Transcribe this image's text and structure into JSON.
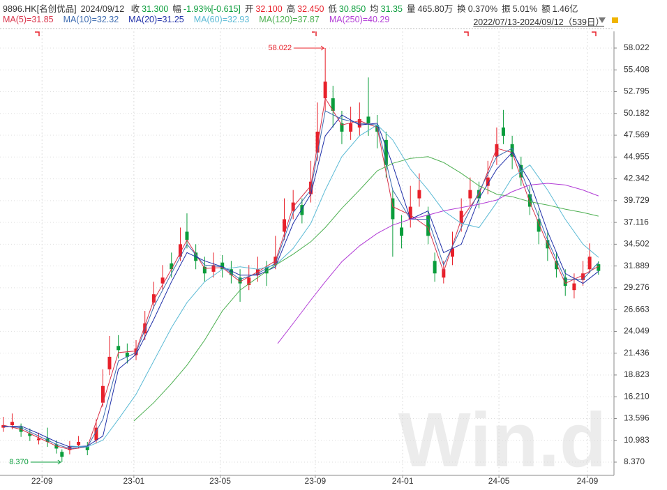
{
  "header": {
    "symbol": "9896.HK[名创优品]",
    "date": "2024/09/12",
    "items": [
      {
        "label": "收",
        "value": "31.300",
        "color": "#0a9d3b"
      },
      {
        "label": "幅",
        "value": "-1.93%[-0.615]",
        "color": "#0a9d3b"
      },
      {
        "label": "开",
        "value": "32.100",
        "color": "#e8202a"
      },
      {
        "label": "高",
        "value": "32.450",
        "color": "#e8202a"
      },
      {
        "label": "低",
        "value": "30.850",
        "color": "#0a9d3b"
      },
      {
        "label": "均",
        "value": "31.35",
        "color": "#0a9d3b"
      },
      {
        "label": "量",
        "value": "465.80万",
        "color": "#333333"
      },
      {
        "label": "换",
        "value": "0.370%",
        "color": "#333333"
      },
      {
        "label": "振",
        "value": "5.01%",
        "color": "#333333"
      },
      {
        "label": "额",
        "value": "1.46亿",
        "color": "#333333"
      }
    ]
  },
  "chart_data": {
    "type": "candlestick",
    "period": "2022/07/13-2024/09/12（539日）",
    "watermark": "Win.d",
    "up_color": "#e8202a",
    "down_color": "#0a9d3b",
    "grid": true,
    "x": [
      0,
      8,
      16,
      24,
      32,
      40,
      48,
      53,
      60,
      68,
      76,
      84,
      90,
      96,
      104,
      112,
      120,
      128,
      136,
      144,
      152,
      160,
      166,
      174,
      182,
      190,
      198,
      206,
      214,
      222,
      230,
      238,
      246,
      254,
      262,
      270,
      278,
      284,
      291,
      298,
      306,
      314,
      322,
      330,
      338,
      346,
      352,
      360,
      368,
      376,
      384,
      390,
      398,
      406,
      414,
      422,
      430,
      438,
      446,
      452,
      460,
      468,
      476,
      484,
      492,
      500,
      508,
      516,
      524,
      530,
      538
    ],
    "open": [
      12.5,
      12.8,
      12.6,
      11.8,
      11.0,
      11.2,
      10.5,
      9.6,
      9.8,
      10.4,
      10.3,
      11.0,
      15.5,
      19.5,
      22.3,
      21.5,
      21.2,
      23.8,
      27.5,
      29.8,
      32.2,
      33.0,
      36.0,
      33.5,
      31.8,
      31.2,
      32.3,
      31.5,
      30.5,
      29.6,
      30.8,
      31.8,
      32.0,
      36.0,
      38.5,
      39.2,
      40.5,
      45.5,
      52.0,
      52.0,
      49.0,
      48.0,
      48.5,
      49.8,
      48.8,
      47.0,
      40.0,
      36.5,
      37.5,
      40.0,
      38.0,
      32.5,
      30.5,
      33.0,
      37.0,
      40.0,
      41.0,
      41.5,
      45.0,
      48.5,
      46.5,
      44.0,
      40.5,
      37.5,
      35.0,
      32.5,
      30.5,
      29.0,
      30.2,
      31.5,
      32.1
    ],
    "high": [
      13.8,
      14.2,
      13.0,
      12.4,
      11.9,
      12.5,
      11.0,
      9.9,
      10.9,
      11.5,
      10.8,
      13.5,
      19.5,
      23.5,
      23.6,
      22.6,
      23.0,
      26.5,
      30.0,
      32.0,
      33.5,
      36.5,
      38.2,
      34.5,
      33.0,
      33.5,
      33.2,
      32.5,
      31.5,
      32.0,
      33.0,
      32.5,
      35.5,
      40.0,
      41.0,
      40.0,
      44.5,
      51.5,
      58.022,
      53.5,
      50.5,
      51.0,
      51.5,
      54.5,
      50.0,
      48.0,
      41.0,
      38.0,
      41.5,
      43.0,
      39.0,
      33.5,
      32.5,
      36.0,
      40.0,
      42.5,
      42.0,
      44.5,
      48.5,
      50.6,
      47.5,
      45.0,
      41.5,
      38.5,
      36.0,
      33.5,
      31.5,
      31.0,
      32.5,
      34.6,
      32.45
    ],
    "low": [
      12.0,
      12.3,
      11.4,
      10.9,
      10.5,
      10.2,
      9.4,
      8.37,
      9.3,
      10.0,
      9.2,
      10.6,
      15.0,
      18.8,
      20.8,
      20.2,
      20.6,
      23.0,
      26.8,
      29.0,
      30.5,
      32.5,
      34.0,
      31.5,
      30.0,
      30.5,
      30.5,
      29.8,
      27.6,
      29.0,
      30.0,
      29.5,
      31.5,
      35.0,
      37.5,
      37.0,
      39.5,
      44.5,
      50.5,
      48.5,
      46.5,
      47.0,
      47.5,
      47.5,
      46.0,
      42.5,
      33.0,
      34.0,
      36.5,
      39.0,
      34.5,
      30.0,
      29.8,
      32.0,
      36.0,
      39.0,
      38.8,
      40.5,
      44.0,
      46.5,
      43.5,
      41.5,
      38.0,
      34.5,
      32.5,
      30.5,
      28.3,
      28.0,
      29.5,
      31.0,
      30.85
    ],
    "close": [
      12.8,
      13.2,
      12.0,
      11.5,
      11.2,
      10.8,
      10.0,
      9.0,
      10.3,
      10.8,
      9.8,
      12.5,
      17.5,
      21.0,
      21.8,
      21.0,
      22.0,
      25.0,
      28.5,
      30.5,
      31.5,
      34.5,
      35.0,
      32.5,
      31.0,
      32.0,
      31.5,
      30.8,
      29.8,
      30.5,
      31.5,
      31.0,
      33.0,
      37.5,
      39.5,
      38.0,
      42.0,
      48.0,
      54.0,
      50.5,
      48.0,
      49.0,
      49.5,
      49.0,
      48.0,
      44.0,
      37.5,
      35.5,
      39.0,
      41.0,
      35.5,
      31.0,
      31.5,
      34.0,
      38.5,
      41.0,
      40.0,
      42.5,
      46.5,
      47.5,
      45.0,
      42.5,
      39.0,
      36.0,
      34.0,
      31.5,
      29.5,
      29.8,
      31.0,
      33.0,
      31.3
    ],
    "annotations": [
      {
        "x": 291,
        "value": 58.022,
        "color": "#e8202a"
      },
      {
        "x": 53,
        "value": 8.37,
        "label": "8.370",
        "color": "#0a9d3b"
      }
    ],
    "series": [
      {
        "name": "MA(5)=31.85",
        "color": "#d9334a",
        "x": [
          0,
          16,
          32,
          48,
          60,
          76,
          90,
          104,
          120,
          136,
          152,
          166,
          182,
          198,
          214,
          230,
          246,
          262,
          278,
          291,
          306,
          322,
          338,
          352,
          368,
          384,
          398,
          414,
          430,
          446,
          460,
          476,
          492,
          508,
          524,
          538
        ],
        "values": [
          12.8,
          12.3,
          11.3,
          10.3,
          9.9,
          10.2,
          15.5,
          21.5,
          21.7,
          27.8,
          31.5,
          35.0,
          31.6,
          31.7,
          30.0,
          31.2,
          32.5,
          39.0,
          41.5,
          52.0,
          48.8,
          49.3,
          48.5,
          39.0,
          38.0,
          36.5,
          31.2,
          37.5,
          40.5,
          46.0,
          45.5,
          39.5,
          34.5,
          29.8,
          30.8,
          31.85
        ]
      },
      {
        "name": "MA(10)=32.32",
        "color": "#3c6bb0",
        "x": [
          0,
          16,
          32,
          48,
          60,
          76,
          90,
          104,
          120,
          136,
          152,
          166,
          182,
          198,
          214,
          230,
          246,
          262,
          278,
          291,
          306,
          322,
          338,
          352,
          368,
          384,
          398,
          414,
          430,
          446,
          460,
          476,
          492,
          508,
          524,
          538
        ],
        "values": [
          12.7,
          12.5,
          11.5,
          10.5,
          10.0,
          10.2,
          13.5,
          20.5,
          21.5,
          27.0,
          31.0,
          34.5,
          32.0,
          31.8,
          30.3,
          31.0,
          32.2,
          38.3,
          41.0,
          50.5,
          49.5,
          49.0,
          48.8,
          41.0,
          37.5,
          37.5,
          32.0,
          36.5,
          40.8,
          45.0,
          46.0,
          40.5,
          35.0,
          30.3,
          30.3,
          32.32
        ]
      },
      {
        "name": "MA(20)=31.25",
        "color": "#1f2fa8",
        "x": [
          0,
          16,
          32,
          48,
          60,
          76,
          90,
          104,
          120,
          136,
          152,
          166,
          182,
          198,
          214,
          230,
          246,
          262,
          278,
          291,
          306,
          322,
          338,
          352,
          368,
          384,
          398,
          414,
          430,
          446,
          460,
          476,
          492,
          508,
          524,
          538
        ],
        "values": [
          12.6,
          12.7,
          11.8,
          10.8,
          10.2,
          10.3,
          11.5,
          19.5,
          21.3,
          25.5,
          30.0,
          33.5,
          32.5,
          31.8,
          30.8,
          30.8,
          31.8,
          37.0,
          40.5,
          47.5,
          50.0,
          48.8,
          49.0,
          44.0,
          37.5,
          38.5,
          33.5,
          34.5,
          40.0,
          43.5,
          45.5,
          42.0,
          36.0,
          31.0,
          29.8,
          31.25
        ]
      },
      {
        "name": "MA(60)=32.93",
        "color": "#5bbad5",
        "x": [
          60,
          76,
          90,
          104,
          120,
          136,
          152,
          166,
          182,
          198,
          214,
          230,
          246,
          262,
          278,
          291,
          306,
          322,
          338,
          352,
          368,
          384,
          398,
          414,
          430,
          446,
          460,
          476,
          492,
          508,
          524,
          538
        ],
        "values": [
          10.3,
          10.2,
          11.0,
          13.5,
          16.5,
          20.5,
          24.5,
          27.5,
          30.0,
          31.5,
          31.8,
          31.5,
          32.0,
          34.0,
          37.0,
          41.0,
          45.0,
          47.5,
          48.8,
          47.0,
          43.5,
          41.0,
          38.5,
          37.0,
          36.5,
          39.5,
          42.5,
          44.0,
          41.0,
          37.5,
          34.5,
          32.93
        ]
      },
      {
        "name": "MA(120)=37.87",
        "color": "#4caf50",
        "x": [
          118,
          136,
          152,
          166,
          182,
          198,
          214,
          230,
          246,
          262,
          278,
          291,
          306,
          322,
          338,
          352,
          368,
          384,
          398,
          414,
          430,
          446,
          460,
          476,
          492,
          508,
          524,
          538
        ],
        "values": [
          13.3,
          15.5,
          17.8,
          20.0,
          23.0,
          26.5,
          29.0,
          30.5,
          32.0,
          33.3,
          34.8,
          36.5,
          38.8,
          41.0,
          43.3,
          44.2,
          44.8,
          45.0,
          44.3,
          43.0,
          41.5,
          40.5,
          40.2,
          39.6,
          39.2,
          38.7,
          38.3,
          37.87
        ]
      },
      {
        "name": "MA(250)=40.29",
        "color": "#b23cd6",
        "x": [
          248,
          262,
          278,
          291,
          306,
          322,
          338,
          352,
          368,
          384,
          398,
          414,
          430,
          446,
          460,
          476,
          492,
          508,
          524,
          538
        ],
        "values": [
          22.6,
          25.0,
          27.8,
          30.0,
          32.4,
          34.3,
          35.8,
          36.8,
          37.5,
          38.0,
          38.5,
          38.9,
          39.3,
          39.8,
          40.8,
          41.6,
          41.8,
          41.6,
          41.0,
          40.29
        ]
      }
    ],
    "xlim": [
      -3,
      552
    ],
    "xticks": [
      {
        "value": 35,
        "label": "22-09"
      },
      {
        "value": 118,
        "label": "23-01"
      },
      {
        "value": 196,
        "label": "23-05"
      },
      {
        "value": 282,
        "label": "23-09"
      },
      {
        "value": 361,
        "label": "24-01"
      },
      {
        "value": 448,
        "label": "24-05"
      },
      {
        "value": 528,
        "label": "24-09"
      }
    ],
    "ylim": [
      6.95,
      59.44
    ],
    "yticks": [
      58.022,
      55.408,
      52.795,
      50.182,
      47.569,
      44.955,
      42.342,
      39.729,
      37.116,
      34.502,
      31.889,
      29.276,
      26.663,
      24.049,
      21.436,
      18.823,
      {
        "value": 16.21,
        "label": "16.210"
      },
      13.596,
      10.983,
      {
        "value": 8.37,
        "label": "8.370"
      }
    ]
  }
}
